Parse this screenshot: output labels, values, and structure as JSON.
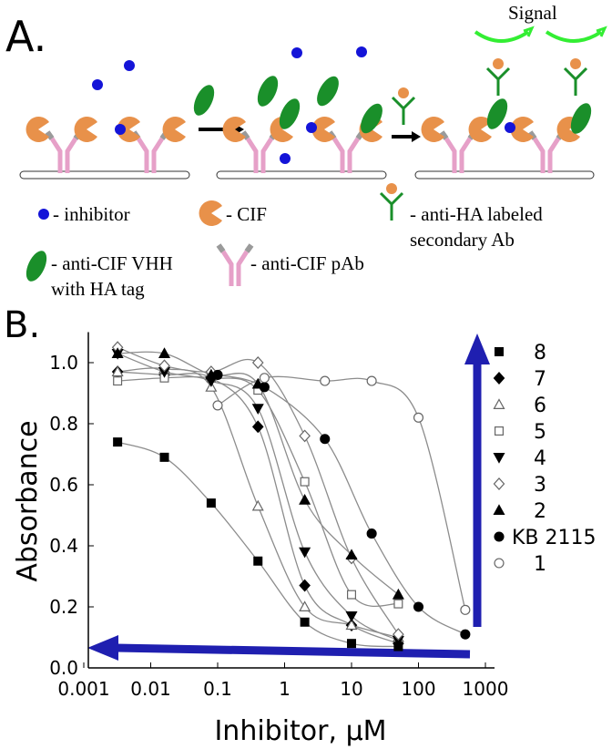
{
  "panel_a": {
    "label": "A.",
    "signal": "Signal",
    "legend": {
      "inhibitor": "- inhibitor",
      "cif": "- CIF",
      "secondary_ab": [
        "- anti-HA labeled",
        "secondary Ab"
      ],
      "vhh": [
        "- anti-CIF VHH",
        "with HA tag"
      ],
      "pab": "- anti-CIF pAb"
    }
  },
  "chart_data": {
    "type": "scatter",
    "panel_label": "B.",
    "x_label": "Inhibitor, μM",
    "y_label": "Absorbance",
    "x_scale": "log",
    "xlim": [
      0.001,
      1000
    ],
    "xticks": [
      0.001,
      0.01,
      0.1,
      1,
      10,
      100,
      1000
    ],
    "ylim": [
      0,
      1.1
    ],
    "yticks": [
      {
        "value": 0,
        "label": "0.0"
      },
      0.2,
      0.4,
      0.6,
      0.8,
      {
        "value": 1,
        "label": "1.0"
      }
    ],
    "curve_color": "#8c8c8c",
    "series": [
      {
        "name": "8",
        "marker": "square",
        "filled": true,
        "color": "#000000",
        "x": [
          0.0032,
          0.016,
          0.08,
          0.4,
          2,
          10,
          50
        ],
        "values": [
          0.74,
          0.69,
          0.54,
          0.35,
          0.15,
          0.08,
          0.07
        ]
      },
      {
        "name": "7",
        "marker": "diamond",
        "filled": true,
        "color": "#000000",
        "x": [
          0.0032,
          0.016,
          0.08,
          0.4,
          2,
          10,
          50
        ],
        "values": [
          0.97,
          0.96,
          0.95,
          0.79,
          0.27,
          0.14,
          0.08
        ]
      },
      {
        "name": "6",
        "marker": "triangle",
        "filled": false,
        "color": "#666666",
        "x": [
          0.0032,
          0.016,
          0.08,
          0.4,
          2,
          10,
          50
        ],
        "values": [
          0.97,
          0.98,
          0.92,
          0.53,
          0.2,
          0.14,
          0.1
        ]
      },
      {
        "name": "5",
        "marker": "square",
        "filled": false,
        "color": "#666666",
        "x": [
          0.0032,
          0.016,
          0.08,
          0.4,
          2,
          10,
          50
        ],
        "values": [
          0.94,
          0.95,
          0.95,
          0.91,
          0.61,
          0.24,
          0.21
        ]
      },
      {
        "name": "4",
        "marker": "triangle-down",
        "filled": true,
        "color": "#000000",
        "x": [
          0.0032,
          0.016,
          0.08,
          0.4,
          2,
          10,
          50
        ],
        "values": [
          1.03,
          0.97,
          0.94,
          0.85,
          0.38,
          0.17,
          0.09
        ]
      },
      {
        "name": "3",
        "marker": "diamond",
        "filled": false,
        "color": "#666666",
        "x": [
          0.0032,
          0.016,
          0.08,
          0.4,
          2,
          10,
          50
        ],
        "values": [
          1.05,
          0.99,
          0.97,
          1.0,
          0.76,
          0.36,
          0.11
        ]
      },
      {
        "name": "2",
        "marker": "triangle",
        "filled": true,
        "color": "#000000",
        "x": [
          0.0032,
          0.016,
          0.08,
          0.4,
          2,
          10,
          50
        ],
        "values": [
          1.03,
          1.03,
          0.96,
          0.93,
          0.55,
          0.37,
          0.24
        ]
      },
      {
        "name": "KB 2115",
        "marker": "circle",
        "filled": true,
        "color": "#000000",
        "x": [
          0.1,
          0.5,
          4,
          20,
          100,
          500
        ],
        "values": [
          0.96,
          0.92,
          0.75,
          0.44,
          0.2,
          0.11
        ]
      },
      {
        "name": "1",
        "marker": "circle",
        "filled": false,
        "color": "#666666",
        "x": [
          0.1,
          0.5,
          4,
          20,
          100,
          500
        ],
        "values": [
          0.86,
          0.95,
          0.94,
          0.94,
          0.82,
          0.19
        ]
      }
    ]
  }
}
